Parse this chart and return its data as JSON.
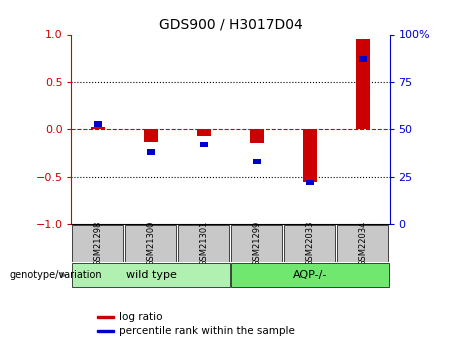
{
  "title": "GDS900 / H3017D04",
  "samples": [
    "GSM21298",
    "GSM21300",
    "GSM21301",
    "GSM21299",
    "GSM22033",
    "GSM22034"
  ],
  "log_ratio": [
    0.02,
    -0.13,
    -0.07,
    -0.14,
    -0.55,
    0.95
  ],
  "percentile_rank": [
    53,
    38,
    42,
    33,
    22,
    87
  ],
  "groups": [
    {
      "label": "wild type",
      "indices": [
        0,
        1,
        2
      ],
      "color": "#90ee90"
    },
    {
      "label": "AQP-/-",
      "indices": [
        3,
        4,
        5
      ],
      "color": "#90ee90"
    }
  ],
  "group_label": "genotype/variation",
  "ylim_left": [
    -1,
    1
  ],
  "ylim_right": [
    0,
    100
  ],
  "yticks_left": [
    -1,
    -0.5,
    0,
    0.5,
    1
  ],
  "yticks_right": [
    0,
    25,
    50,
    75,
    100
  ],
  "dotted_lines": [
    -0.5,
    0.5
  ],
  "red_color": "#cc0000",
  "blue_color": "#0000cc",
  "sample_box_color": "#c8c8c8",
  "legend_items": [
    "log ratio",
    "percentile rank within the sample"
  ],
  "legend_colors": [
    "#cc0000",
    "#0000cc"
  ]
}
